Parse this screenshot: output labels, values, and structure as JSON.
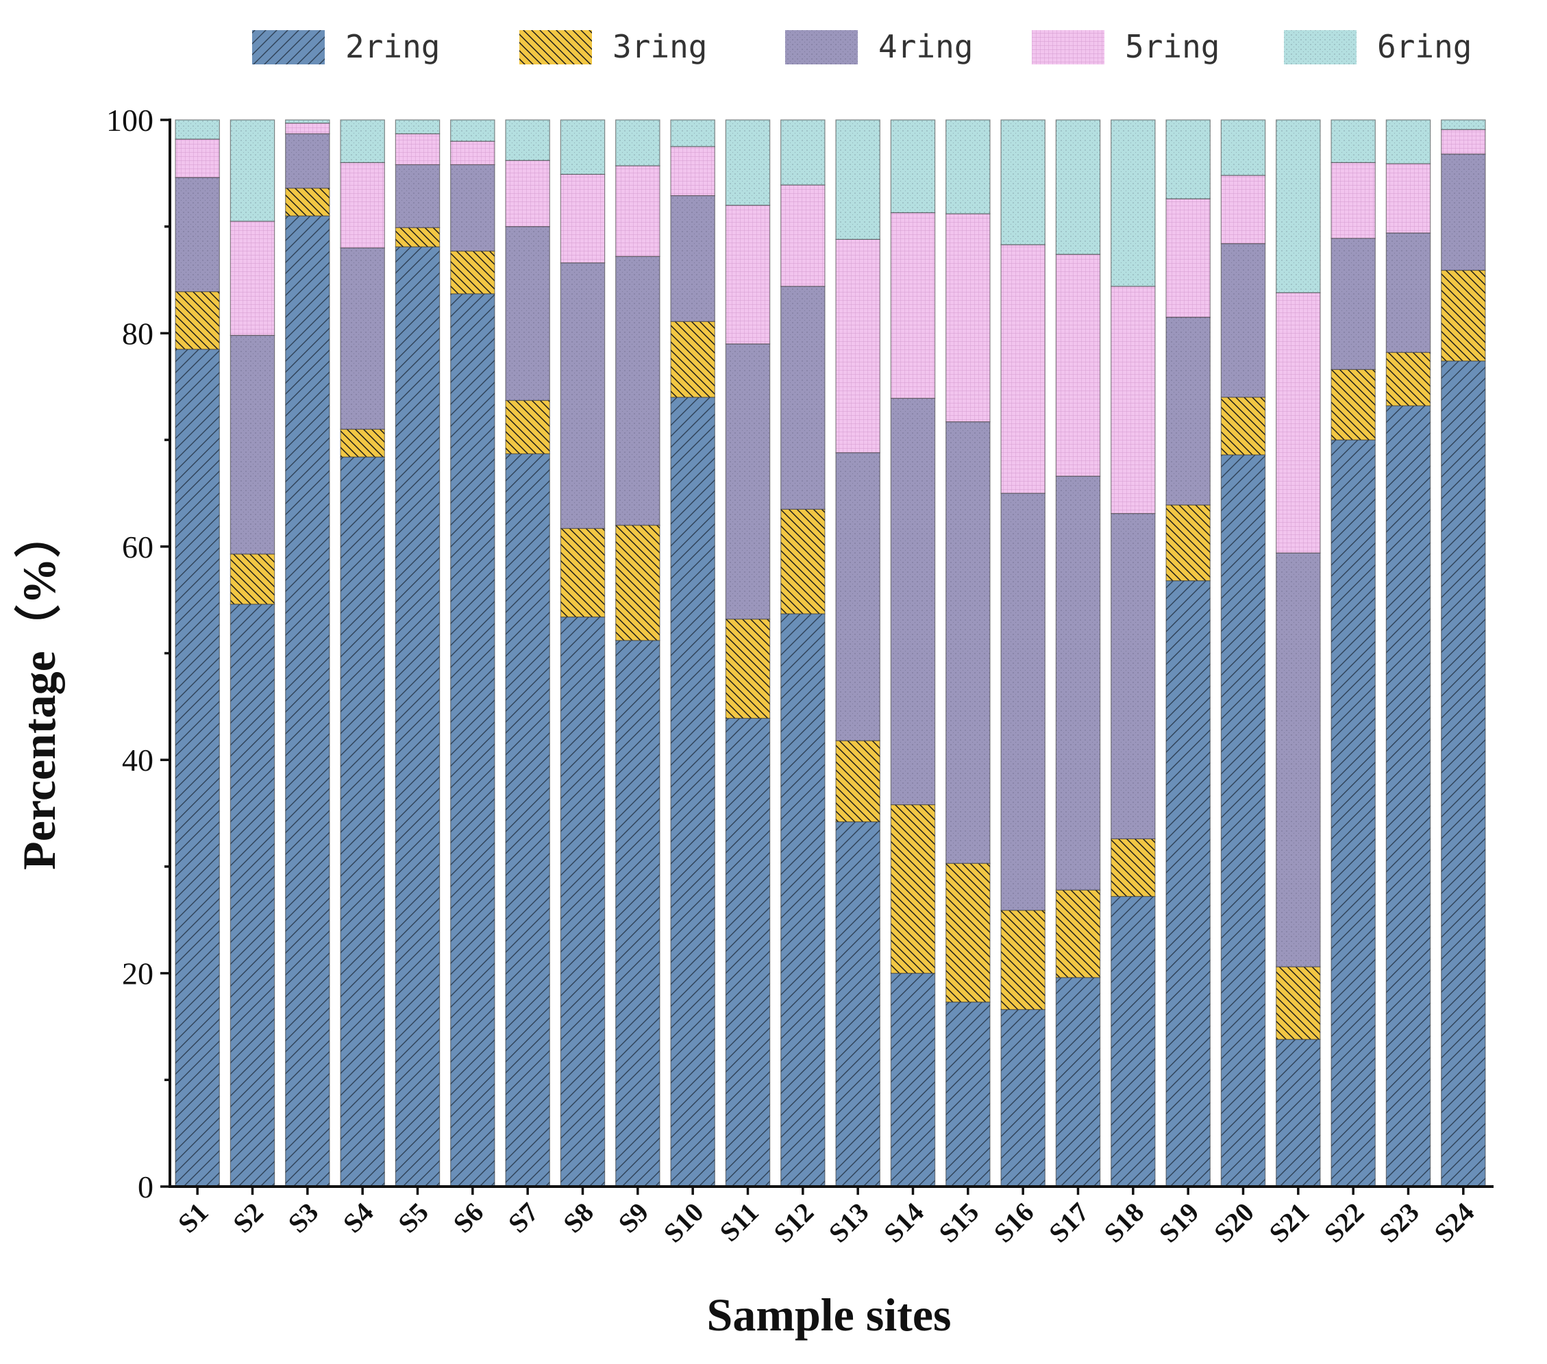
{
  "chart_data": {
    "type": "bar",
    "stacked": true,
    "title": "",
    "xlabel": "Sample sites",
    "ylabel": "Percentage（%）",
    "ylim": [
      0,
      100
    ],
    "yticks": [
      0,
      20,
      40,
      60,
      80,
      100
    ],
    "legend_position": "top",
    "categories": [
      "S1",
      "S2",
      "S3",
      "S4",
      "S5",
      "S6",
      "S7",
      "S8",
      "S9",
      "S10",
      "S11",
      "S12",
      "S13",
      "S14",
      "S15",
      "S16",
      "S17",
      "S18",
      "S19",
      "S20",
      "S21",
      "S22",
      "S23",
      "S24"
    ],
    "series": [
      {
        "name": "2ring",
        "color": "#6a8fb8",
        "pattern": "hatch-forward",
        "values": [
          78.5,
          54.6,
          91.0,
          68.4,
          88.1,
          83.7,
          68.7,
          53.4,
          51.2,
          74.0,
          43.9,
          53.7,
          34.2,
          20.0,
          17.3,
          16.6,
          19.6,
          27.2,
          56.8,
          68.6,
          13.8,
          70.0,
          73.2,
          77.4
        ]
      },
      {
        "name": "3ring",
        "color": "#f2c744",
        "pattern": "hatch-back",
        "values": [
          5.4,
          4.7,
          2.6,
          2.6,
          1.8,
          4.0,
          5.0,
          8.3,
          10.8,
          7.1,
          9.3,
          9.8,
          7.6,
          15.8,
          13.0,
          9.3,
          8.2,
          5.4,
          7.1,
          5.4,
          6.8,
          6.6,
          5.0,
          8.5
        ]
      },
      {
        "name": "4ring",
        "color": "#9b96bc",
        "pattern": "dots",
        "values": [
          10.7,
          20.5,
          5.1,
          17.0,
          5.9,
          8.1,
          16.3,
          24.9,
          25.2,
          11.8,
          25.8,
          20.9,
          27.0,
          38.1,
          41.4,
          39.1,
          38.8,
          30.5,
          17.6,
          14.4,
          38.8,
          12.3,
          11.2,
          10.9
        ]
      },
      {
        "name": "5ring",
        "color": "#f2c4ee",
        "pattern": "grid",
        "values": [
          3.6,
          10.7,
          1.0,
          8.0,
          2.9,
          2.2,
          6.2,
          8.3,
          8.5,
          4.6,
          13.0,
          9.5,
          20.0,
          17.4,
          19.5,
          23.3,
          20.8,
          21.3,
          11.1,
          6.4,
          24.4,
          7.1,
          6.5,
          2.3
        ]
      },
      {
        "name": "6ring",
        "color": "#b4dfe0",
        "pattern": "dots",
        "values": [
          1.8,
          9.5,
          0.3,
          4.0,
          1.3,
          2.0,
          3.8,
          5.1,
          4.3,
          2.5,
          8.0,
          6.1,
          11.2,
          8.7,
          8.8,
          11.7,
          12.6,
          15.6,
          7.4,
          5.2,
          16.2,
          4.0,
          4.1,
          0.9
        ]
      }
    ]
  }
}
